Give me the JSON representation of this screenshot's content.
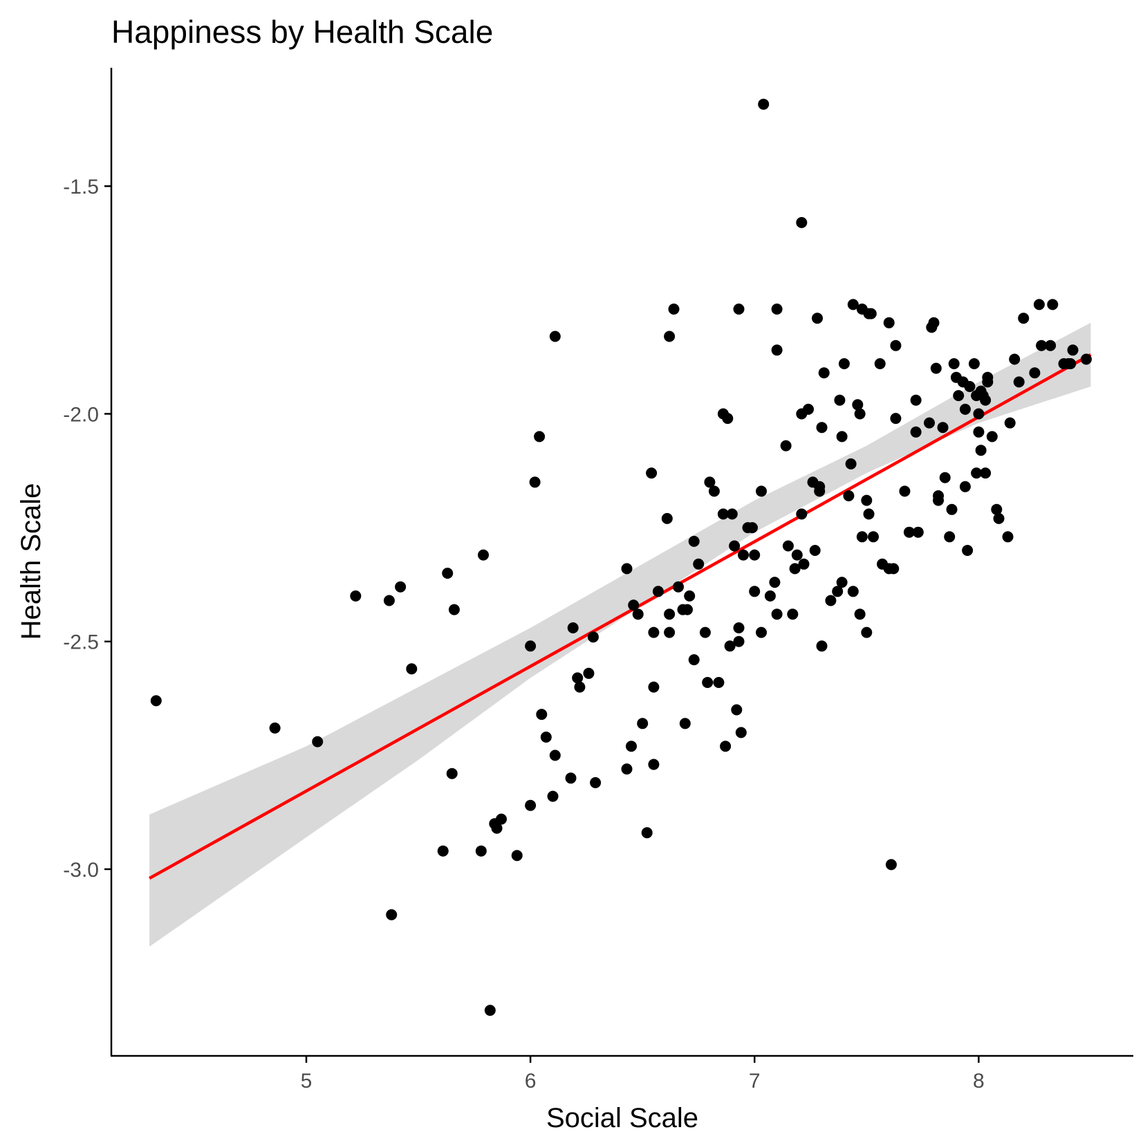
{
  "chart_data": {
    "type": "scatter",
    "title": "Happiness by Health Scale",
    "xlabel": "Social Scale",
    "ylabel": "Health Scale",
    "xlim": [
      4.13,
      8.69
    ],
    "ylim": [
      -3.41,
      -1.24
    ],
    "xticks": [
      5,
      6,
      7,
      8
    ],
    "yticks": [
      -3.0,
      -2.5,
      -2.0,
      -1.5
    ],
    "xtick_labels": [
      "5",
      "6",
      "7",
      "8"
    ],
    "ytick_labels": [
      "-3.0",
      "-2.5",
      "-2.0",
      "-1.5"
    ],
    "grid": false,
    "legend": "none",
    "colors": {
      "points": "#000000",
      "fit_line": "#ff0000",
      "confidence_band": "#d9d9d9"
    },
    "fit_line": {
      "x": [
        4.3,
        8.5
      ],
      "y": [
        -3.02,
        -1.87
      ]
    },
    "confidence_band": {
      "x": [
        4.3,
        5.0,
        5.5,
        6.0,
        6.5,
        7.0,
        7.5,
        8.0,
        8.5
      ],
      "lower": [
        -3.17,
        -2.93,
        -2.76,
        -2.58,
        -2.42,
        -2.26,
        -2.13,
        -2.02,
        -1.94
      ],
      "upper": [
        -2.88,
        -2.73,
        -2.6,
        -2.47,
        -2.33,
        -2.19,
        -2.07,
        -1.93,
        -1.8
      ]
    },
    "points": [
      [
        4.33,
        -2.63
      ],
      [
        4.86,
        -2.69
      ],
      [
        5.05,
        -2.72
      ],
      [
        5.22,
        -2.4
      ],
      [
        5.37,
        -2.41
      ],
      [
        5.38,
        -3.1
      ],
      [
        5.42,
        -2.38
      ],
      [
        5.47,
        -2.56
      ],
      [
        5.61,
        -2.96
      ],
      [
        5.63,
        -2.35
      ],
      [
        5.65,
        -2.79
      ],
      [
        5.66,
        -2.43
      ],
      [
        5.78,
        -2.96
      ],
      [
        5.79,
        -2.31
      ],
      [
        5.82,
        -3.31
      ],
      [
        5.84,
        -2.9
      ],
      [
        5.85,
        -2.91
      ],
      [
        5.87,
        -2.89
      ],
      [
        5.94,
        -2.97
      ],
      [
        6.0,
        -2.51
      ],
      [
        6.0,
        -2.86
      ],
      [
        6.02,
        -2.15
      ],
      [
        6.04,
        -2.05
      ],
      [
        6.05,
        -2.66
      ],
      [
        6.07,
        -2.71
      ],
      [
        6.1,
        -2.84
      ],
      [
        6.11,
        -2.75
      ],
      [
        6.11,
        -1.83
      ],
      [
        6.18,
        -2.8
      ],
      [
        6.19,
        -2.47
      ],
      [
        6.21,
        -2.58
      ],
      [
        6.22,
        -2.6
      ],
      [
        6.26,
        -2.57
      ],
      [
        6.28,
        -2.49
      ],
      [
        6.29,
        -2.81
      ],
      [
        6.43,
        -2.78
      ],
      [
        6.43,
        -2.34
      ],
      [
        6.45,
        -2.73
      ],
      [
        6.46,
        -2.42
      ],
      [
        6.48,
        -2.44
      ],
      [
        6.5,
        -2.68
      ],
      [
        6.52,
        -2.92
      ],
      [
        6.54,
        -2.13
      ],
      [
        6.55,
        -2.6
      ],
      [
        6.55,
        -2.77
      ],
      [
        6.55,
        -2.48
      ],
      [
        6.57,
        -2.39
      ],
      [
        6.61,
        -2.23
      ],
      [
        6.62,
        -2.44
      ],
      [
        6.62,
        -2.48
      ],
      [
        6.62,
        -1.83
      ],
      [
        6.64,
        -1.77
      ],
      [
        6.66,
        -2.38
      ],
      [
        6.68,
        -2.43
      ],
      [
        6.69,
        -2.68
      ],
      [
        6.7,
        -2.43
      ],
      [
        6.71,
        -2.4
      ],
      [
        6.73,
        -2.54
      ],
      [
        6.73,
        -2.28
      ],
      [
        6.75,
        -2.33
      ],
      [
        6.78,
        -2.48
      ],
      [
        6.79,
        -2.59
      ],
      [
        6.8,
        -2.15
      ],
      [
        6.82,
        -2.17
      ],
      [
        6.84,
        -2.59
      ],
      [
        6.86,
        -2.22
      ],
      [
        6.86,
        -2.0
      ],
      [
        6.87,
        -2.73
      ],
      [
        6.88,
        -2.01
      ],
      [
        6.89,
        -2.51
      ],
      [
        6.9,
        -2.22
      ],
      [
        6.91,
        -2.29
      ],
      [
        6.92,
        -2.65
      ],
      [
        6.93,
        -2.47
      ],
      [
        6.93,
        -2.5
      ],
      [
        6.93,
        -1.77
      ],
      [
        6.94,
        -2.7
      ],
      [
        6.95,
        -2.31
      ],
      [
        6.97,
        -2.25
      ],
      [
        6.99,
        -2.25
      ],
      [
        7.0,
        -2.31
      ],
      [
        7.0,
        -2.39
      ],
      [
        7.03,
        -2.48
      ],
      [
        7.03,
        -2.17
      ],
      [
        7.04,
        -1.32
      ],
      [
        7.07,
        -2.4
      ],
      [
        7.09,
        -2.37
      ],
      [
        7.1,
        -1.86
      ],
      [
        7.1,
        -1.77
      ],
      [
        7.1,
        -2.44
      ],
      [
        7.14,
        -2.07
      ],
      [
        7.15,
        -2.29
      ],
      [
        7.17,
        -2.44
      ],
      [
        7.18,
        -2.34
      ],
      [
        7.19,
        -2.31
      ],
      [
        7.21,
        -1.58
      ],
      [
        7.21,
        -2.0
      ],
      [
        7.21,
        -2.22
      ],
      [
        7.22,
        -2.33
      ],
      [
        7.24,
        -1.99
      ],
      [
        7.26,
        -2.15
      ],
      [
        7.27,
        -2.3
      ],
      [
        7.28,
        -1.79
      ],
      [
        7.29,
        -2.17
      ],
      [
        7.29,
        -2.16
      ],
      [
        7.3,
        -2.03
      ],
      [
        7.3,
        -2.51
      ],
      [
        7.31,
        -1.91
      ],
      [
        7.34,
        -2.41
      ],
      [
        7.37,
        -2.39
      ],
      [
        7.38,
        -1.97
      ],
      [
        7.39,
        -2.37
      ],
      [
        7.39,
        -2.05
      ],
      [
        7.4,
        -1.89
      ],
      [
        7.42,
        -2.18
      ],
      [
        7.43,
        -2.11
      ],
      [
        7.44,
        -2.39
      ],
      [
        7.44,
        -1.76
      ],
      [
        7.46,
        -1.98
      ],
      [
        7.47,
        -2.0
      ],
      [
        7.47,
        -2.44
      ],
      [
        7.48,
        -1.77
      ],
      [
        7.48,
        -2.27
      ],
      [
        7.5,
        -2.48
      ],
      [
        7.5,
        -2.19
      ],
      [
        7.51,
        -2.22
      ],
      [
        7.51,
        -1.78
      ],
      [
        7.52,
        -1.78
      ],
      [
        7.53,
        -2.27
      ],
      [
        7.56,
        -1.89
      ],
      [
        7.57,
        -2.33
      ],
      [
        7.6,
        -2.34
      ],
      [
        7.6,
        -1.8
      ],
      [
        7.61,
        -2.99
      ],
      [
        7.62,
        -2.34
      ],
      [
        7.63,
        -1.85
      ],
      [
        7.63,
        -2.01
      ],
      [
        7.67,
        -2.17
      ],
      [
        7.69,
        -2.26
      ],
      [
        7.72,
        -2.04
      ],
      [
        7.72,
        -1.97
      ],
      [
        7.73,
        -2.26
      ],
      [
        7.78,
        -2.02
      ],
      [
        7.79,
        -1.81
      ],
      [
        7.8,
        -1.8
      ],
      [
        7.81,
        -1.9
      ],
      [
        7.82,
        -2.18
      ],
      [
        7.82,
        -2.19
      ],
      [
        7.84,
        -2.03
      ],
      [
        7.85,
        -2.14
      ],
      [
        7.87,
        -2.27
      ],
      [
        7.88,
        -2.21
      ],
      [
        7.89,
        -1.89
      ],
      [
        7.9,
        -1.92
      ],
      [
        7.91,
        -1.96
      ],
      [
        7.93,
        -1.93
      ],
      [
        7.94,
        -1.99
      ],
      [
        7.94,
        -2.16
      ],
      [
        7.95,
        -2.3
      ],
      [
        7.96,
        -1.94
      ],
      [
        7.98,
        -1.89
      ],
      [
        7.99,
        -1.96
      ],
      [
        7.99,
        -2.13
      ],
      [
        8.0,
        -2.0
      ],
      [
        8.0,
        -2.04
      ],
      [
        8.01,
        -2.08
      ],
      [
        8.01,
        -1.95
      ],
      [
        8.02,
        -1.96
      ],
      [
        8.03,
        -1.97
      ],
      [
        8.03,
        -2.13
      ],
      [
        8.04,
        -1.92
      ],
      [
        8.04,
        -1.93
      ],
      [
        8.06,
        -2.05
      ],
      [
        8.08,
        -2.21
      ],
      [
        8.09,
        -2.23
      ],
      [
        8.13,
        -2.27
      ],
      [
        8.14,
        -2.02
      ],
      [
        8.16,
        -1.88
      ],
      [
        8.18,
        -1.93
      ],
      [
        8.2,
        -1.79
      ],
      [
        8.25,
        -1.91
      ],
      [
        8.27,
        -1.76
      ],
      [
        8.28,
        -1.85
      ],
      [
        8.32,
        -1.85
      ],
      [
        8.33,
        -1.76
      ],
      [
        8.38,
        -1.89
      ],
      [
        8.4,
        -1.89
      ],
      [
        8.41,
        -1.89
      ],
      [
        8.42,
        -1.86
      ],
      [
        8.48,
        -1.88
      ]
    ]
  }
}
